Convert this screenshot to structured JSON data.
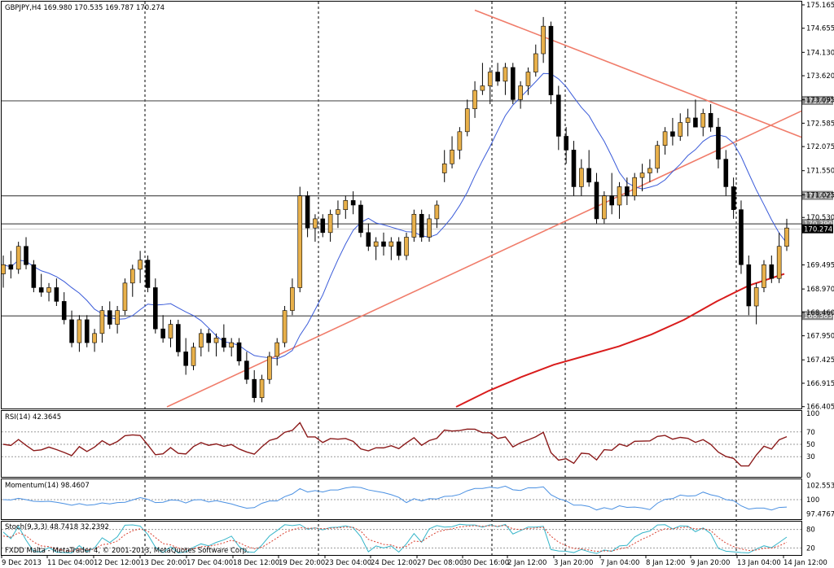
{
  "chart_data": {
    "type": "candlestick",
    "symbol_header": "GBPJPY,H4  169.980 170.535 169.787 170.274",
    "price_axis": {
      "ticks": [
        "175.165",
        "174.655",
        "174.130",
        "173.620",
        "173.095",
        "172.585",
        "172.075",
        "171.550",
        "171.025",
        "170.530",
        "170.274",
        "169.495",
        "168.970",
        "168.460",
        "167.950",
        "167.425",
        "166.915",
        "166.405"
      ],
      "range": [
        166.4,
        175.2
      ]
    },
    "time_axis": {
      "labels": [
        "9 Dec 2013",
        "11 Dec 04:00",
        "12 Dec 12:00",
        "13 Dec 20:00",
        "17 Dec 04:00",
        "18 Dec 12:00",
        "19 Dec 20:00",
        "23 Dec 04:00",
        "24 Dec 12:00",
        "27 Dec 08:00",
        "30 Dec 16:00",
        "2 Jan 12:00",
        "3 Jan 20:00",
        "7 Jan 04:00",
        "8 Jan 12:00",
        "9 Jan 20:00",
        "13 Jan 04:00",
        "14 Jan 12:00"
      ]
    },
    "horizontal_levels": [
      {
        "label": "173.072",
        "value": 173.072
      },
      {
        "label": "171.002",
        "value": 171.002
      },
      {
        "label": "170.390",
        "value": 170.39
      },
      {
        "label": "168.383",
        "value": 168.383
      }
    ],
    "current_price": {
      "label": "170.274",
      "value": 170.274
    },
    "candles_ohlc": [
      [
        169.3,
        169.7,
        169.0,
        169.5
      ],
      [
        169.5,
        169.8,
        169.2,
        169.4
      ],
      [
        169.4,
        170.0,
        169.3,
        169.9
      ],
      [
        169.9,
        170.1,
        169.4,
        169.5
      ],
      [
        169.5,
        169.6,
        168.9,
        169.0
      ],
      [
        169.0,
        169.3,
        168.8,
        168.9
      ],
      [
        168.9,
        169.1,
        168.7,
        169.0
      ],
      [
        169.0,
        169.2,
        168.6,
        168.7
      ],
      [
        168.7,
        168.9,
        168.2,
        168.3
      ],
      [
        168.3,
        168.5,
        167.7,
        167.8
      ],
      [
        167.8,
        168.4,
        167.6,
        168.3
      ],
      [
        168.3,
        168.4,
        167.7,
        167.8
      ],
      [
        167.8,
        168.1,
        167.6,
        168.0
      ],
      [
        168.0,
        168.6,
        167.8,
        168.5
      ],
      [
        168.5,
        168.7,
        168.1,
        168.2
      ],
      [
        168.2,
        168.6,
        168.0,
        168.5
      ],
      [
        168.5,
        169.2,
        168.4,
        169.1
      ],
      [
        169.1,
        169.5,
        168.8,
        169.4
      ],
      [
        169.4,
        169.8,
        169.1,
        169.6
      ],
      [
        169.6,
        169.7,
        168.9,
        169.0
      ],
      [
        169.0,
        169.2,
        168.0,
        168.1
      ],
      [
        168.1,
        168.4,
        167.8,
        167.9
      ],
      [
        167.9,
        168.3,
        167.7,
        168.2
      ],
      [
        168.2,
        168.3,
        167.5,
        167.6
      ],
      [
        167.6,
        167.9,
        167.1,
        167.3
      ],
      [
        167.3,
        167.8,
        167.2,
        167.7
      ],
      [
        167.7,
        168.1,
        167.5,
        168.0
      ],
      [
        168.0,
        168.1,
        167.6,
        167.8
      ],
      [
        167.8,
        168.0,
        167.5,
        167.9
      ],
      [
        167.9,
        168.2,
        167.6,
        167.7
      ],
      [
        167.7,
        167.9,
        167.5,
        167.8
      ],
      [
        167.8,
        167.9,
        167.3,
        167.4
      ],
      [
        167.4,
        167.6,
        166.9,
        167.0
      ],
      [
        167.0,
        167.2,
        166.5,
        166.6
      ],
      [
        166.6,
        167.1,
        166.5,
        167.0
      ],
      [
        167.0,
        167.6,
        166.9,
        167.5
      ],
      [
        167.5,
        167.9,
        167.3,
        167.8
      ],
      [
        167.8,
        168.6,
        167.7,
        168.5
      ],
      [
        168.5,
        169.2,
        168.4,
        169.0
      ],
      [
        169.0,
        171.2,
        168.9,
        171.0
      ],
      [
        171.0,
        171.1,
        170.1,
        170.3
      ],
      [
        170.3,
        170.6,
        170.0,
        170.5
      ],
      [
        170.5,
        170.6,
        170.1,
        170.2
      ],
      [
        170.2,
        170.7,
        170.0,
        170.6
      ],
      [
        170.6,
        170.9,
        170.3,
        170.7
      ],
      [
        170.7,
        171.0,
        170.5,
        170.9
      ],
      [
        170.9,
        171.1,
        170.6,
        170.8
      ],
      [
        170.8,
        170.9,
        170.1,
        170.2
      ],
      [
        170.2,
        170.4,
        169.8,
        169.9
      ],
      [
        169.9,
        170.1,
        169.6,
        170.0
      ],
      [
        170.0,
        170.2,
        169.7,
        169.9
      ],
      [
        169.9,
        170.1,
        169.6,
        170.0
      ],
      [
        170.0,
        170.1,
        169.6,
        169.7
      ],
      [
        169.7,
        170.2,
        169.6,
        170.1
      ],
      [
        170.1,
        170.7,
        170.0,
        170.6
      ],
      [
        170.6,
        170.7,
        170.0,
        170.1
      ],
      [
        170.1,
        170.6,
        170.0,
        170.5
      ],
      [
        170.5,
        170.9,
        170.3,
        170.8
      ],
      [
        171.5,
        172.0,
        171.3,
        171.7
      ],
      [
        171.7,
        172.3,
        171.6,
        172.0
      ],
      [
        172.0,
        172.5,
        171.8,
        172.4
      ],
      [
        172.4,
        173.1,
        172.3,
        172.9
      ],
      [
        172.9,
        173.5,
        172.7,
        173.3
      ],
      [
        173.3,
        173.9,
        173.2,
        173.4
      ],
      [
        173.4,
        173.8,
        173.0,
        173.7
      ],
      [
        173.7,
        173.9,
        173.4,
        173.5
      ],
      [
        173.5,
        173.9,
        173.2,
        173.8
      ],
      [
        173.8,
        173.9,
        173.0,
        173.1
      ],
      [
        173.1,
        173.5,
        172.9,
        173.4
      ],
      [
        173.4,
        173.8,
        173.2,
        173.7
      ],
      [
        173.7,
        174.3,
        173.6,
        174.1
      ],
      [
        174.1,
        174.9,
        173.9,
        174.7
      ],
      [
        174.7,
        174.8,
        173.0,
        173.2
      ],
      [
        173.2,
        173.4,
        172.0,
        172.3
      ],
      [
        172.3,
        172.5,
        171.7,
        172.0
      ],
      [
        172.0,
        172.2,
        171.0,
        171.2
      ],
      [
        171.2,
        171.8,
        171.0,
        171.6
      ],
      [
        171.6,
        172.0,
        171.2,
        171.3
      ],
      [
        171.3,
        171.5,
        170.4,
        170.5
      ],
      [
        170.5,
        171.1,
        170.4,
        171.0
      ],
      [
        171.0,
        171.5,
        170.6,
        170.8
      ],
      [
        170.8,
        171.3,
        170.5,
        171.2
      ],
      [
        171.2,
        171.4,
        170.8,
        171.0
      ],
      [
        171.0,
        171.5,
        170.9,
        171.4
      ],
      [
        171.4,
        171.7,
        171.1,
        171.5
      ],
      [
        171.5,
        171.8,
        171.3,
        171.6
      ],
      [
        171.6,
        172.2,
        171.5,
        172.1
      ],
      [
        172.1,
        172.5,
        171.9,
        172.4
      ],
      [
        172.4,
        172.7,
        172.1,
        172.3
      ],
      [
        172.3,
        172.8,
        172.2,
        172.6
      ],
      [
        172.6,
        172.9,
        172.3,
        172.7
      ],
      [
        172.7,
        173.1,
        172.5,
        172.5
      ],
      [
        172.5,
        172.9,
        172.3,
        172.8
      ],
      [
        172.8,
        173.0,
        172.4,
        172.5
      ],
      [
        172.5,
        172.7,
        171.6,
        171.8
      ],
      [
        171.8,
        172.0,
        171.0,
        171.2
      ],
      [
        171.2,
        171.4,
        170.5,
        170.7
      ],
      [
        170.7,
        170.9,
        169.3,
        169.5
      ],
      [
        169.5,
        169.7,
        168.4,
        168.6
      ],
      [
        168.6,
        169.1,
        168.2,
        169.0
      ],
      [
        169.0,
        169.6,
        168.9,
        169.5
      ],
      [
        169.5,
        169.7,
        169.1,
        169.2
      ],
      [
        169.2,
        170.2,
        169.1,
        169.9
      ],
      [
        169.9,
        170.5,
        169.8,
        170.3
      ]
    ],
    "sma_blue_label": "",
    "ema_red_label": "",
    "trendlines": "2",
    "indicators": [
      {
        "name": "RSI(14)",
        "header": "RSI(14) 42.3645",
        "ticks": [
          "100",
          "70",
          "50",
          "30",
          "0"
        ]
      },
      {
        "name": "Momentum(14)",
        "header": "Momentum(14) 98.4607",
        "ticks": [
          "102.5531",
          "100",
          "97.4767"
        ]
      },
      {
        "name": "Stoch(9,3,3)",
        "header": "Stoch(9,3,3) 48.7418 32.2392",
        "ticks": [
          "80",
          "20"
        ]
      }
    ],
    "copyright": "FXDD Malta - MetaTrader 4, © 2001-2013, MetaQuotes Software Corp.",
    "colors": {
      "bull_body": "#e8b04a",
      "bear_body": "#000000",
      "sma": "#3a5bd9",
      "ema": "#d91c1c",
      "trendline": "#f07c6a",
      "rsi": "#8b1a1a",
      "momentum": "#4a90e2",
      "stoch_main": "#35b5c9",
      "stoch_signal": "#d94030"
    }
  }
}
